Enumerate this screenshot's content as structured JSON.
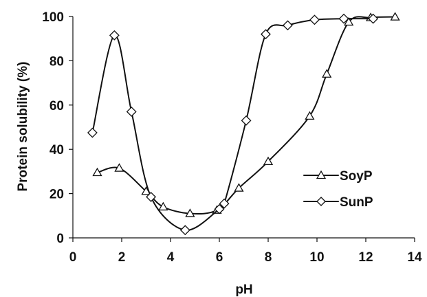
{
  "chart_data": {
    "type": "line",
    "xlabel": "pH",
    "ylabel": "Protein solubility (%)",
    "xlim": [
      0,
      14
    ],
    "ylim": [
      0,
      100
    ],
    "xticks": [
      "0",
      "2",
      "4",
      "6",
      "8",
      "10",
      "12",
      "14"
    ],
    "yticks": [
      "0",
      "20",
      "40",
      "60",
      "80",
      "100"
    ],
    "grid": false,
    "legend_position": "right",
    "line_color": "#111111",
    "series": [
      {
        "name": "SoyP",
        "marker": "triangle",
        "x": [
          1.0,
          1.9,
          3.0,
          3.7,
          4.8,
          5.9,
          6.8,
          8.0,
          9.7,
          10.4,
          11.3,
          12.2,
          13.2
        ],
        "y": [
          29.5,
          31.5,
          21,
          14,
          11,
          12.5,
          22.5,
          34.5,
          55,
          74,
          97.5,
          99.5,
          99.8
        ]
      },
      {
        "name": "SunP",
        "marker": "diamond",
        "x": [
          0.8,
          1.7,
          2.4,
          3.2,
          4.6,
          6.0,
          6.2,
          7.1,
          7.9,
          8.8,
          9.9,
          11.1,
          12.3
        ],
        "y": [
          47.5,
          91.5,
          57,
          18.5,
          3.5,
          13,
          15.5,
          53,
          92,
          96,
          98.5,
          99,
          99
        ]
      }
    ]
  }
}
